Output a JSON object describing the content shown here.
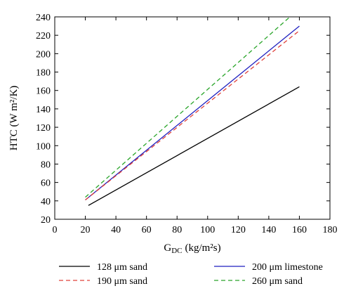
{
  "chart_data": {
    "type": "line",
    "xlabel": "G",
    "xlabel_sub": "DC",
    "xlabel_unit": "(kg/m²s)",
    "ylabel": "HTC (W m²/K)",
    "xlim": [
      0,
      180
    ],
    "ylim": [
      20,
      240
    ],
    "x_ticks": [
      0,
      20,
      40,
      60,
      80,
      100,
      120,
      140,
      160,
      180
    ],
    "y_ticks": [
      20,
      40,
      60,
      80,
      100,
      120,
      140,
      160,
      180,
      200,
      220,
      240
    ],
    "legend_placement": "bottom",
    "series": [
      {
        "name": "128 μm sand",
        "color": "#000000",
        "dash": "solid",
        "x": [
          22,
          160
        ],
        "y": [
          35,
          164
        ]
      },
      {
        "name": "200 μm limestone",
        "color": "#1f1fbf",
        "dash": "solid",
        "x": [
          20,
          160
        ],
        "y": [
          41,
          230
        ]
      },
      {
        "name": "190 μm sand",
        "color": "#e0403a",
        "dash": "dashed",
        "x": [
          20,
          160
        ],
        "y": [
          41,
          225
        ]
      },
      {
        "name": "260 μm sand",
        "color": "#2aa52a",
        "dash": "dashed",
        "x": [
          20,
          160
        ],
        "y": [
          44,
          249
        ]
      }
    ]
  }
}
